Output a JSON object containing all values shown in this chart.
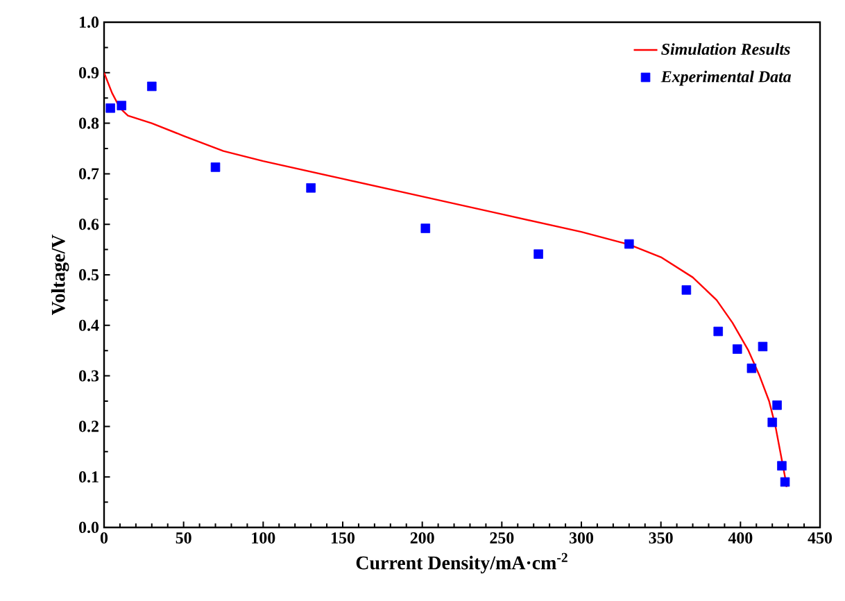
{
  "chart_data": {
    "type": "scatter",
    "xlabel": "Current Density/mA·cm$^{-2}$",
    "ylabel": "Voltage/V",
    "xlim": [
      0,
      450
    ],
    "ylim": [
      0,
      1.0
    ],
    "xticks": [
      0,
      50,
      100,
      150,
      200,
      250,
      300,
      350,
      400,
      450
    ],
    "yticks": [
      {
        "value": 0,
        "label": "0.0"
      },
      0.1,
      0.2,
      0.3,
      0.4,
      0.5,
      0.6,
      0.7,
      0.8,
      0.9,
      {
        "value": 1.0,
        "label": "1.0"
      }
    ],
    "legend": "top right",
    "grid": false,
    "series": [
      {
        "name": "Simulation Results",
        "type": "line",
        "color": "#ff0000",
        "marker": "none",
        "line_style": "solid",
        "x": [
          0,
          5,
          10,
          15,
          30,
          50,
          75,
          100,
          150,
          200,
          250,
          300,
          330,
          350,
          370,
          385,
          395,
          405,
          412,
          418,
          422,
          425,
          428,
          429
        ],
        "values": [
          0.9,
          0.86,
          0.83,
          0.815,
          0.8,
          0.775,
          0.745,
          0.725,
          0.69,
          0.655,
          0.62,
          0.585,
          0.56,
          0.535,
          0.495,
          0.45,
          0.405,
          0.35,
          0.3,
          0.25,
          0.2,
          0.15,
          0.1,
          0.08
        ]
      },
      {
        "name": "Experimental Data",
        "color": "#0000ff",
        "marker": "square",
        "x": [
          4,
          11,
          30,
          70,
          130,
          202,
          273,
          330,
          366,
          386,
          398,
          407,
          414,
          420,
          423,
          426,
          428
        ],
        "values": [
          0.83,
          0.835,
          0.873,
          0.713,
          0.672,
          0.592,
          0.541,
          0.561,
          0.47,
          0.388,
          0.353,
          0.315,
          0.358,
          0.208,
          0.242,
          0.122,
          0.09
        ]
      }
    ]
  }
}
